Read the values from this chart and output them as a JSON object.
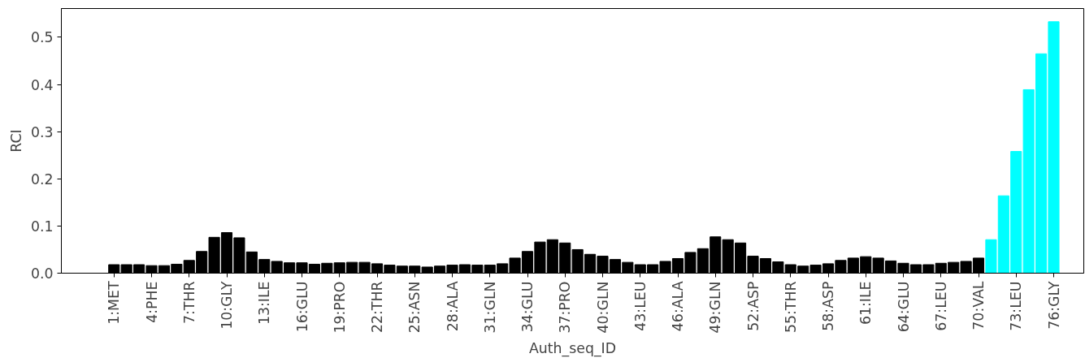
{
  "chart_data": {
    "type": "bar",
    "xlabel": "Auth_seq_ID",
    "ylabel": "RCI",
    "categories": [
      "1:MET",
      null,
      null,
      "4:PHE",
      null,
      null,
      "7:THR",
      null,
      null,
      "10:GLY",
      null,
      null,
      "13:ILE",
      null,
      null,
      "16:GLU",
      null,
      null,
      "19:PRO",
      null,
      null,
      "22:THR",
      null,
      null,
      "25:ASN",
      null,
      null,
      "28:ALA",
      null,
      null,
      "31:GLN",
      null,
      null,
      "34:GLU",
      null,
      null,
      "37:PRO",
      null,
      null,
      "40:GLN",
      null,
      null,
      "43:LEU",
      null,
      null,
      "46:ALA",
      null,
      null,
      "49:GLN",
      null,
      null,
      "52:ASP",
      null,
      null,
      "55:THR",
      null,
      null,
      "58:ASP",
      null,
      null,
      "61:ILE",
      null,
      null,
      "64:GLU",
      null,
      null,
      "67:LEU",
      null,
      null,
      "70:VAL",
      null,
      null,
      "73:LEU",
      null,
      null,
      "76:GLY"
    ],
    "values": [
      0.018,
      0.018,
      0.018,
      0.016,
      0.016,
      0.019,
      0.027,
      0.046,
      0.076,
      0.086,
      0.075,
      0.045,
      0.029,
      0.025,
      0.022,
      0.022,
      0.019,
      0.021,
      0.022,
      0.023,
      0.023,
      0.02,
      0.017,
      0.015,
      0.015,
      0.013,
      0.015,
      0.017,
      0.018,
      0.017,
      0.017,
      0.02,
      0.032,
      0.046,
      0.066,
      0.071,
      0.064,
      0.05,
      0.04,
      0.036,
      0.029,
      0.023,
      0.018,
      0.018,
      0.025,
      0.031,
      0.044,
      0.052,
      0.077,
      0.071,
      0.064,
      0.036,
      0.031,
      0.024,
      0.018,
      0.015,
      0.017,
      0.02,
      0.027,
      0.032,
      0.035,
      0.032,
      0.026,
      0.021,
      0.018,
      0.018,
      0.021,
      0.023,
      0.025,
      0.032,
      0.071,
      0.164,
      0.258,
      0.389,
      0.465,
      0.533
    ],
    "colors": [
      "#000000",
      "#000000",
      "#000000",
      "#000000",
      "#000000",
      "#000000",
      "#000000",
      "#000000",
      "#000000",
      "#000000",
      "#000000",
      "#000000",
      "#000000",
      "#000000",
      "#000000",
      "#000000",
      "#000000",
      "#000000",
      "#000000",
      "#000000",
      "#000000",
      "#000000",
      "#000000",
      "#000000",
      "#000000",
      "#000000",
      "#000000",
      "#000000",
      "#000000",
      "#000000",
      "#000000",
      "#000000",
      "#000000",
      "#000000",
      "#000000",
      "#000000",
      "#000000",
      "#000000",
      "#000000",
      "#000000",
      "#000000",
      "#000000",
      "#000000",
      "#000000",
      "#000000",
      "#000000",
      "#000000",
      "#000000",
      "#000000",
      "#000000",
      "#000000",
      "#000000",
      "#000000",
      "#000000",
      "#000000",
      "#000000",
      "#000000",
      "#000000",
      "#000000",
      "#000000",
      "#000000",
      "#000000",
      "#000000",
      "#000000",
      "#000000",
      "#000000",
      "#000000",
      "#000000",
      "#000000",
      "#000000",
      "#00ffff",
      "#00ffff",
      "#00ffff",
      "#00ffff",
      "#00ffff",
      "#00ffff"
    ],
    "ylim": [
      0,
      0.561
    ],
    "yticks": [
      {
        "value": 0,
        "label": "0.0"
      },
      {
        "value": 0.1,
        "label": "0.1"
      },
      {
        "value": 0.2,
        "label": "0.2"
      },
      {
        "value": 0.3,
        "label": "0.3"
      },
      {
        "value": 0.4,
        "label": "0.4"
      },
      {
        "value": 0.5,
        "label": "0.5"
      }
    ],
    "grid": false
  }
}
